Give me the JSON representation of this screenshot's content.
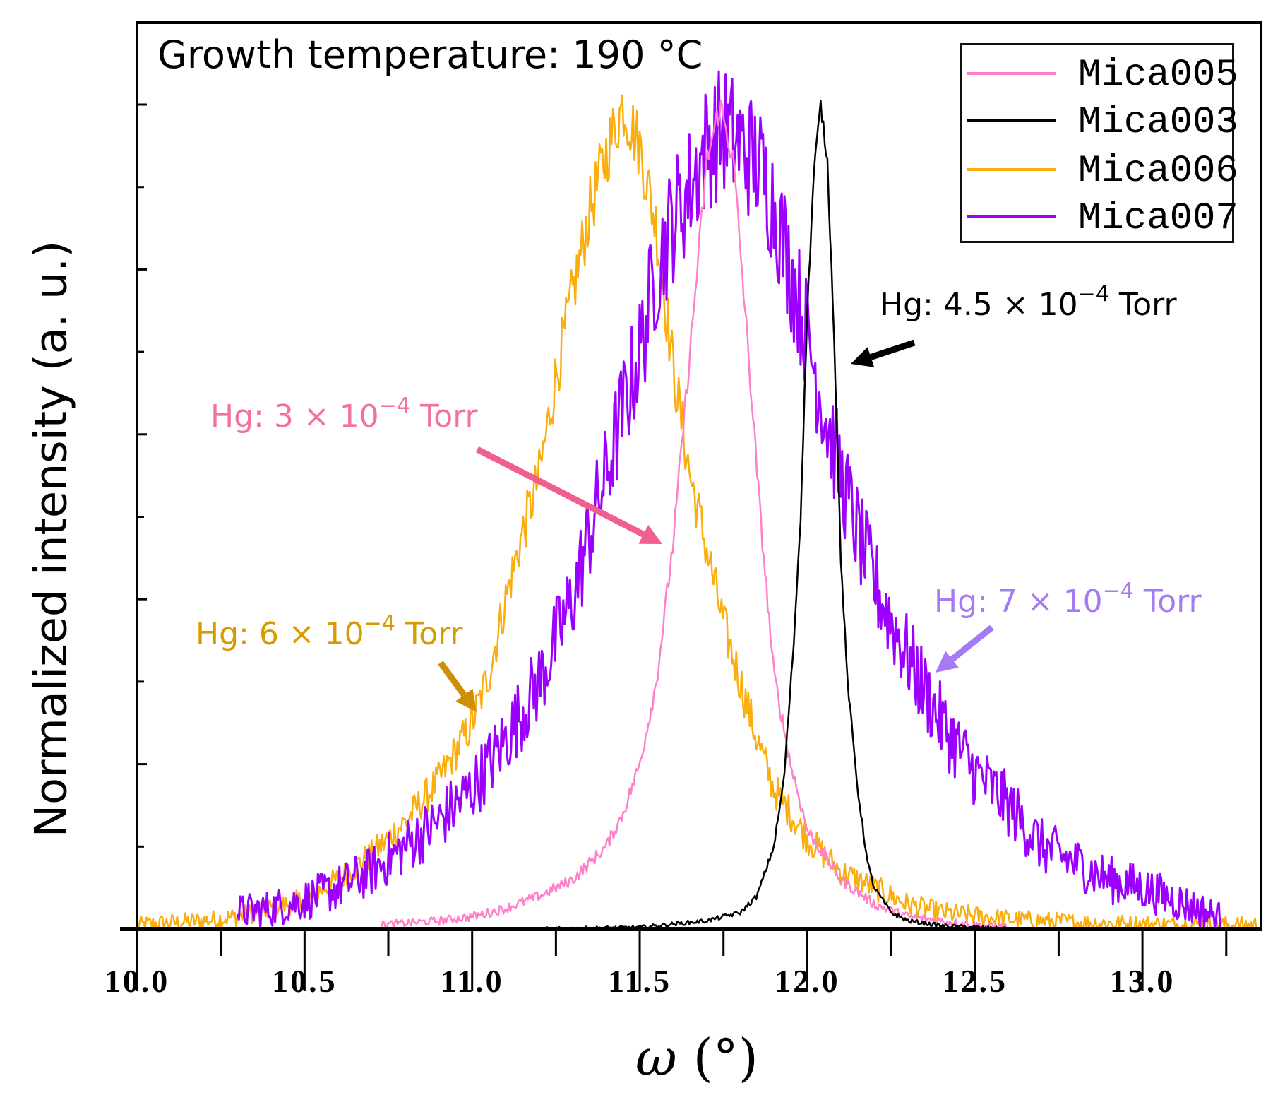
{
  "chart_data": {
    "type": "line",
    "title": "Growth temperature: 190 °C",
    "xlabel_symbol": "ω",
    "xlabel_unit": "(°)",
    "ylabel": "Normalized intensity (a. u.)",
    "xlim": [
      10.0,
      13.35
    ],
    "ylim": [
      0,
      1.1
    ],
    "x_ticks": [
      "10.0",
      "10.5",
      "11.0",
      "11.5",
      "12.0",
      "12.5",
      "13.0"
    ],
    "x_tick_values": [
      10.0,
      10.5,
      11.0,
      11.5,
      12.0,
      12.5,
      13.0
    ],
    "y_tick_labels_shown": false,
    "legend_position": "top-right",
    "series": [
      {
        "name": "Mica005",
        "color": "#FF80C8",
        "x": [
          10.73,
          10.9,
          11.0,
          11.1,
          11.2,
          11.3,
          11.4,
          11.45,
          11.5,
          11.55,
          11.6,
          11.65,
          11.7,
          11.74,
          11.78,
          11.82,
          11.86,
          11.9,
          11.95,
          12.0,
          12.1,
          12.2,
          12.3,
          12.5,
          12.6
        ],
        "y": [
          0.005,
          0.01,
          0.015,
          0.025,
          0.04,
          0.06,
          0.1,
          0.14,
          0.2,
          0.3,
          0.47,
          0.7,
          0.93,
          1.0,
          0.93,
          0.72,
          0.5,
          0.31,
          0.2,
          0.12,
          0.06,
          0.03,
          0.015,
          0.005,
          0.003
        ]
      },
      {
        "name": "Mica003",
        "color": "#000000",
        "x": [
          11.2,
          11.5,
          11.7,
          11.8,
          11.85,
          11.9,
          11.93,
          11.96,
          11.98,
          12.0,
          12.02,
          12.04,
          12.06,
          12.08,
          12.1,
          12.12,
          12.15,
          12.18,
          12.2,
          12.25,
          12.3,
          12.4,
          12.6
        ],
        "y": [
          0.0,
          0.002,
          0.01,
          0.02,
          0.04,
          0.1,
          0.18,
          0.35,
          0.5,
          0.75,
          0.92,
          1.0,
          0.93,
          0.72,
          0.45,
          0.3,
          0.17,
          0.08,
          0.05,
          0.02,
          0.01,
          0.004,
          0.0
        ]
      },
      {
        "name": "Mica006",
        "color": "#FBAD0E",
        "x": [
          10.0,
          10.2,
          10.3,
          10.4,
          10.5,
          10.6,
          10.7,
          10.8,
          10.9,
          11.0,
          11.05,
          11.1,
          11.15,
          11.2,
          11.25,
          11.3,
          11.35,
          11.4,
          11.45,
          11.5,
          11.55,
          11.6,
          11.65,
          11.7,
          11.75,
          11.8,
          11.85,
          11.9,
          11.95,
          12.0,
          12.1,
          12.2,
          12.3,
          12.4,
          12.6,
          12.8,
          13.0,
          13.35
        ],
        "y": [
          0.005,
          0.01,
          0.015,
          0.025,
          0.035,
          0.06,
          0.09,
          0.13,
          0.18,
          0.25,
          0.31,
          0.4,
          0.48,
          0.55,
          0.67,
          0.77,
          0.87,
          0.94,
          1.0,
          0.95,
          0.85,
          0.68,
          0.55,
          0.46,
          0.37,
          0.3,
          0.23,
          0.17,
          0.14,
          0.11,
          0.07,
          0.05,
          0.03,
          0.02,
          0.012,
          0.008,
          0.006,
          0.005
        ]
      },
      {
        "name": "Mica007",
        "color": "#9B00FF",
        "x": [
          10.3,
          10.4,
          10.5,
          10.6,
          10.7,
          10.8,
          10.9,
          11.0,
          11.1,
          11.2,
          11.3,
          11.35,
          11.4,
          11.45,
          11.5,
          11.55,
          11.6,
          11.65,
          11.7,
          11.75,
          11.8,
          11.85,
          11.9,
          11.95,
          12.0,
          12.05,
          12.1,
          12.15,
          12.2,
          12.3,
          12.4,
          12.5,
          12.6,
          12.7,
          12.8,
          12.9,
          13.0,
          13.1,
          13.25
        ],
        "y": [
          0.02,
          0.025,
          0.035,
          0.05,
          0.07,
          0.1,
          0.13,
          0.17,
          0.23,
          0.3,
          0.4,
          0.48,
          0.55,
          0.63,
          0.7,
          0.8,
          0.86,
          0.9,
          0.95,
          0.97,
          0.95,
          0.93,
          0.88,
          0.8,
          0.72,
          0.63,
          0.55,
          0.48,
          0.42,
          0.33,
          0.25,
          0.19,
          0.15,
          0.1,
          0.08,
          0.06,
          0.05,
          0.035,
          0.01
        ]
      }
    ],
    "annotations": [
      {
        "id": "mica003",
        "prefix": "Hg: 4.5 × 10",
        "exponent": "−4",
        "suffix": " Torr",
        "color": "#000000"
      },
      {
        "id": "mica005",
        "prefix": "Hg: 3 × 10",
        "exponent": "−4",
        "suffix": " Torr",
        "color": "#F2719F"
      },
      {
        "id": "mica006",
        "prefix": "Hg: 6 × 10",
        "exponent": "−4",
        "suffix": " Torr",
        "color": "#D59B00"
      },
      {
        "id": "mica007",
        "prefix": "Hg: 7 × 10",
        "exponent": "−4",
        "suffix": " Torr",
        "color": "#A77AF5"
      }
    ]
  }
}
